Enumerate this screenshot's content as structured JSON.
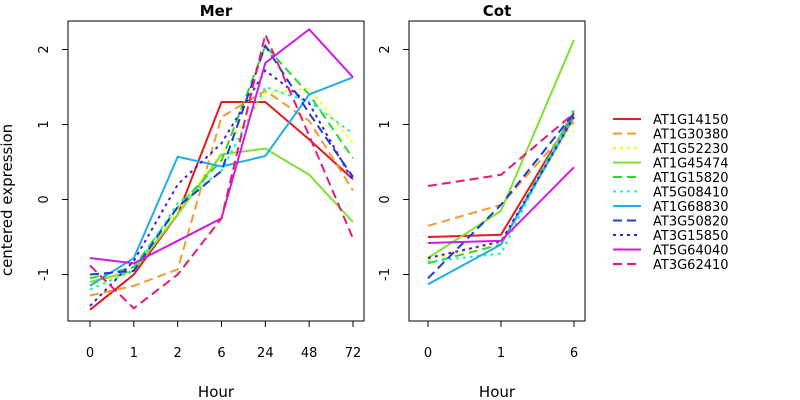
{
  "chart_data": [
    {
      "type": "line",
      "title": "Mer",
      "xlabel": "Hour",
      "ylabel": "centered expression",
      "categories": [
        "0",
        "1",
        "2",
        "6",
        "24",
        "48",
        "72"
      ],
      "ylim": [
        -1.62,
        2.38
      ],
      "yticks": [
        -1,
        0,
        1,
        2
      ],
      "series": [
        {
          "name": "AT1G14150",
          "values": [
            -1.47,
            -1.0,
            -0.2,
            1.3,
            1.3,
            0.8,
            0.27
          ]
        },
        {
          "name": "AT1G30380",
          "values": [
            -1.28,
            -1.15,
            -0.93,
            1.1,
            1.45,
            1.05,
            0.12
          ]
        },
        {
          "name": "AT1G52230",
          "values": [
            -1.15,
            -0.95,
            -0.15,
            0.62,
            1.42,
            1.48,
            0.75
          ]
        },
        {
          "name": "AT1G45474",
          "values": [
            -1.1,
            -0.95,
            -0.2,
            0.6,
            0.68,
            0.33,
            -0.3
          ]
        },
        {
          "name": "AT1G15820",
          "values": [
            -1.05,
            -0.9,
            -0.1,
            0.52,
            2.05,
            1.4,
            0.55
          ]
        },
        {
          "name": "AT5G08410",
          "values": [
            -1.2,
            -0.95,
            -0.05,
            0.38,
            1.5,
            1.3,
            0.88
          ]
        },
        {
          "name": "AT1G68830",
          "values": [
            -1.15,
            -0.78,
            0.57,
            0.44,
            0.58,
            1.4,
            1.63
          ]
        },
        {
          "name": "AT3G50820",
          "values": [
            -1.0,
            -0.95,
            -0.1,
            0.38,
            2.05,
            1.15,
            0.3
          ]
        },
        {
          "name": "AT3G15850",
          "values": [
            -1.42,
            -0.82,
            0.2,
            0.75,
            1.72,
            1.28,
            0.25
          ]
        },
        {
          "name": "AT5G64040",
          "values": [
            -0.78,
            -0.85,
            -0.55,
            -0.25,
            1.82,
            2.27,
            1.63
          ]
        },
        {
          "name": "AT3G62410",
          "values": [
            -0.88,
            -1.45,
            -1.0,
            -0.25,
            2.2,
            0.85,
            -0.52
          ]
        }
      ]
    },
    {
      "type": "line",
      "title": "Cot",
      "xlabel": "Hour",
      "ylabel": "",
      "categories": [
        "0",
        "1",
        "6"
      ],
      "ylim": [
        -1.62,
        2.38
      ],
      "yticks": [
        -1,
        0,
        1,
        2
      ],
      "series": [
        {
          "name": "AT1G14150",
          "values": [
            -0.5,
            -0.47,
            1.15
          ]
        },
        {
          "name": "AT1G30380",
          "values": [
            -0.35,
            -0.07,
            1.03
          ]
        },
        {
          "name": "AT1G52230",
          "values": [
            -0.8,
            -0.57,
            1.05
          ]
        },
        {
          "name": "AT1G45474",
          "values": [
            -0.78,
            -0.15,
            2.13
          ]
        },
        {
          "name": "AT1G15820",
          "values": [
            -0.85,
            -0.6,
            1.18
          ]
        },
        {
          "name": "AT5G08410",
          "values": [
            -0.83,
            -0.72,
            1.22
          ]
        },
        {
          "name": "AT1G68830",
          "values": [
            -1.13,
            -0.6,
            1.1
          ]
        },
        {
          "name": "AT3G50820",
          "values": [
            -1.05,
            -0.07,
            1.15
          ]
        },
        {
          "name": "AT3G15850",
          "values": [
            -0.78,
            -0.56,
            1.1
          ]
        },
        {
          "name": "AT5G64040",
          "values": [
            -0.58,
            -0.55,
            0.43
          ]
        },
        {
          "name": "AT3G62410",
          "values": [
            0.18,
            0.33,
            1.15
          ]
        }
      ]
    }
  ],
  "legend": {
    "position": "right",
    "items": [
      {
        "label": "AT1G14150",
        "color": "#e41a1c",
        "dash": "solid"
      },
      {
        "label": "AT1G30380",
        "color": "#f39c2c",
        "dash": "dashed"
      },
      {
        "label": "AT1G52230",
        "color": "#ffff00",
        "dash": "dotted"
      },
      {
        "label": "AT1G45474",
        "color": "#7ee12e",
        "dash": "solid"
      },
      {
        "label": "AT1G15820",
        "color": "#2fd62f",
        "dash": "dashed"
      },
      {
        "label": "AT5G08410",
        "color": "#1ef0c8",
        "dash": "dotted"
      },
      {
        "label": "AT1G68830",
        "color": "#1eaef0",
        "dash": "solid"
      },
      {
        "label": "AT3G50820",
        "color": "#1a3fd9",
        "dash": "dashed"
      },
      {
        "label": "AT3G15850",
        "color": "#4b1ad9",
        "dash": "dotted"
      },
      {
        "label": "AT5G64040",
        "color": "#d21ae6",
        "dash": "solid"
      },
      {
        "label": "AT3G62410",
        "color": "#e6197a",
        "dash": "dashed"
      }
    ]
  }
}
